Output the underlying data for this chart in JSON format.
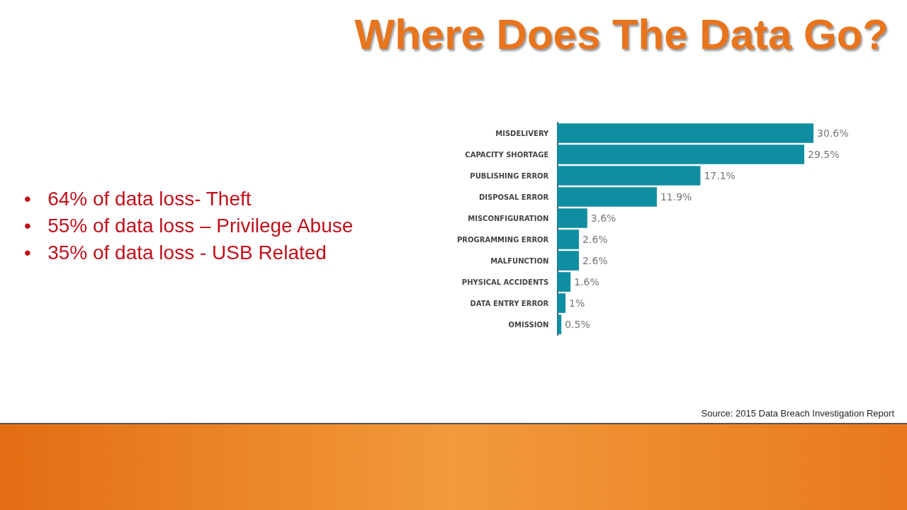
{
  "chart_data": {
    "type": "bar",
    "orientation": "horizontal",
    "title": "Where Does The Data Go?",
    "categories": [
      "MISDELIVERY",
      "CAPACITY SHORTAGE",
      "PUBLISHING ERROR",
      "DISPOSAL ERROR",
      "MISCONFIGURATION",
      "PROGRAMMING ERROR",
      "MALFUNCTION",
      "PHYSICAL ACCIDENTS",
      "DATA ENTRY ERROR",
      "OMISSION"
    ],
    "values": [
      30.6,
      29.5,
      17.1,
      11.9,
      3.6,
      2.6,
      2.6,
      1.6,
      1,
      0.5
    ],
    "value_labels": [
      "30.6%",
      "29.5%",
      "17.1%",
      "11.9%",
      "3.6%",
      "2.6%",
      "2.6%",
      "1.6%",
      "1%",
      "0.5%"
    ],
    "color": "#0f8ea1",
    "tick_labels": "y",
    "annotations": [
      "•   64% of data loss- Theft",
      "•   55% of data loss – Privilege Abuse",
      "•   35% of data loss - USB Related",
      "Source: 2015 Data Breach Investigation Report"
    ]
  }
}
